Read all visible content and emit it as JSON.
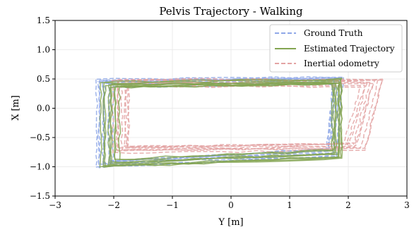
{
  "chart_data": {
    "type": "line",
    "title": "Pelvis Trajectory - Walking",
    "xlabel": "Y [m]",
    "ylabel": "X [m]",
    "xlim": [
      -3,
      3
    ],
    "ylim": [
      -1.5,
      1.5
    ],
    "x_ticks": [
      -3,
      -2,
      -1,
      0,
      1,
      2,
      3
    ],
    "x_tick_labels": [
      "−3",
      "−2",
      "−1",
      "0",
      "1",
      "2",
      "3"
    ],
    "y_ticks": [
      -1.5,
      -1.0,
      -0.5,
      0.0,
      0.5,
      1.0,
      1.5
    ],
    "y_tick_labels": [
      "−1.5",
      "−1.0",
      "−0.5",
      "0.0",
      "0.5",
      "1.0",
      "1.5"
    ],
    "grid": true,
    "legend_position": "top-right",
    "series": [
      {
        "name": "Ground Truth",
        "color": "#8fa8e8",
        "dash": "dashed",
        "loops": 9,
        "corners": [
          [
            -2.3,
            0.5
          ],
          [
            1.9,
            0.55
          ],
          [
            1.8,
            -0.8
          ],
          [
            -2.3,
            -1.0
          ]
        ]
      },
      {
        "name": "Estimated Trajectory",
        "color": "#84a552",
        "dash": "solid",
        "loops": 9,
        "corners": [
          [
            -2.2,
            0.45
          ],
          [
            1.9,
            0.5
          ],
          [
            1.9,
            -0.85
          ],
          [
            -2.2,
            -1.0
          ]
        ]
      },
      {
        "name": "Inertial odometry",
        "color": "#e3a3a3",
        "dash": "dashed",
        "loops": 9,
        "corners": [
          [
            -2.0,
            0.5
          ],
          [
            2.6,
            0.5
          ],
          [
            2.3,
            -0.7
          ],
          [
            -2.0,
            -0.75
          ]
        ]
      }
    ]
  }
}
